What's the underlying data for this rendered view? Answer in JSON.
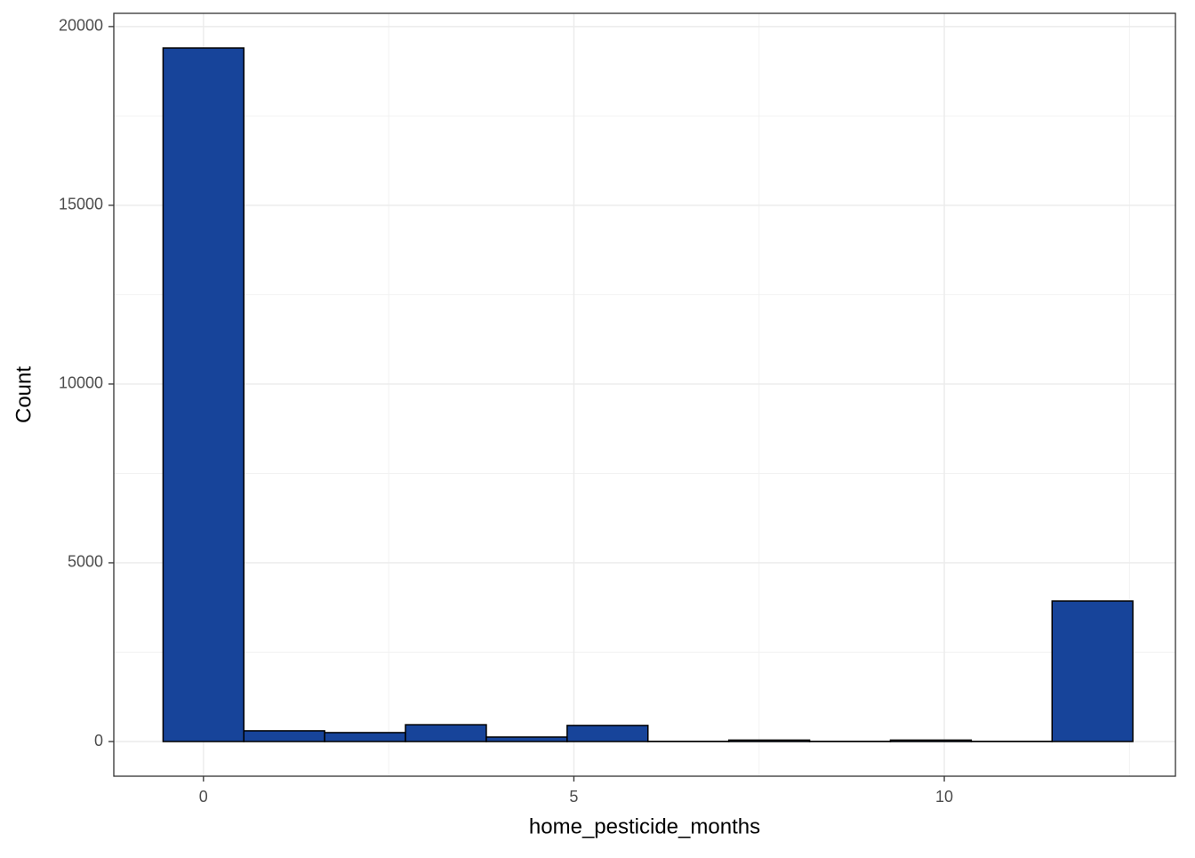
{
  "chart_data": {
    "type": "histogram",
    "x_label": "home_pesticide_months",
    "y_label": "Count",
    "bins": [
      -0.545,
      0.545,
      1.636,
      2.727,
      3.818,
      4.909,
      6,
      7.091,
      8.182,
      9.273,
      10.364,
      11.455,
      12.545
    ],
    "values": [
      19400,
      300,
      250,
      470,
      125,
      450,
      5,
      40,
      5,
      40,
      5,
      3930
    ],
    "color": "#17449a",
    "edge_color": "#000000",
    "xlim": [
      -1.21,
      13.12
    ],
    "xticks": [
      0,
      5,
      10
    ],
    "ylim": [
      -970,
      20370
    ],
    "yticks": [
      0,
      5000,
      10000,
      15000,
      20000
    ],
    "grid": true
  }
}
